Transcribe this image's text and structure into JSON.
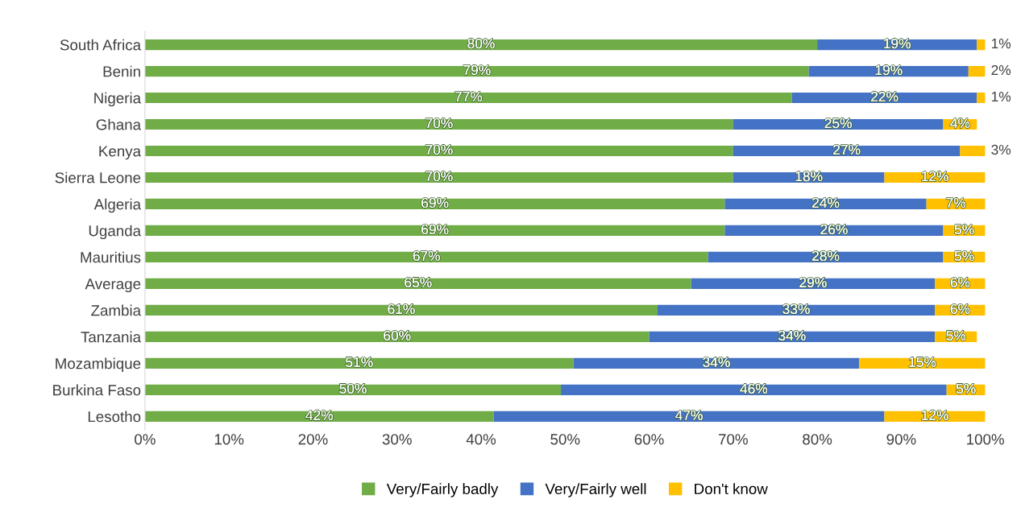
{
  "chart_data": {
    "type": "bar",
    "orientation": "horizontal",
    "stacked": true,
    "categories": [
      "South Africa",
      "Benin",
      "Nigeria",
      "Ghana",
      "Kenya",
      "Sierra Leone",
      "Algeria",
      "Uganda",
      "Mauritius",
      "Average",
      "Zambia",
      "Tanzania",
      "Mozambique",
      "Burkina Faso",
      "Lesotho"
    ],
    "series": [
      {
        "name": "Very/Fairly badly",
        "color": "#70ad47",
        "values": [
          80,
          79,
          77,
          70,
          70,
          70,
          69,
          69,
          67,
          65,
          61,
          60,
          51,
          49.5,
          41.5
        ],
        "value_labels": [
          "80%",
          "79%",
          "77%",
          "70%",
          "70%",
          "70%",
          "69%",
          "69%",
          "67%",
          "65%",
          "61%",
          "60%",
          "51%",
          "50%",
          "42%"
        ]
      },
      {
        "name": "Very/Fairly well",
        "color": "#4472c4",
        "values": [
          19,
          19,
          22,
          25,
          27,
          18,
          24,
          26,
          28,
          29,
          33,
          34,
          34,
          45.9,
          46.5
        ],
        "value_labels": [
          "19%",
          "19%",
          "22%",
          "25%",
          "27%",
          "18%",
          "24%",
          "26%",
          "28%",
          "29%",
          "33%",
          "34%",
          "34%",
          "46%",
          "47%"
        ]
      },
      {
        "name": "Don't know",
        "color": "#ffc000",
        "values": [
          1,
          2,
          1,
          4,
          3,
          12,
          7,
          5,
          5,
          6,
          6,
          5,
          15,
          4.6,
          12
        ],
        "value_labels": [
          "1%",
          "2%",
          "1%",
          "4%",
          "3%",
          "12%",
          "7%",
          "5%",
          "5%",
          "6%",
          "6%",
          "5%",
          "15%",
          "5%",
          "12%"
        ]
      }
    ],
    "xlim": [
      0,
      100
    ],
    "xticks": [
      {
        "value": 0,
        "label": "0%"
      },
      {
        "value": 10,
        "label": "10%"
      },
      {
        "value": 20,
        "label": "20%"
      },
      {
        "value": 30,
        "label": "30%"
      },
      {
        "value": 40,
        "label": "40%"
      },
      {
        "value": 50,
        "label": "50%"
      },
      {
        "value": 60,
        "label": "60%"
      },
      {
        "value": 70,
        "label": "70%"
      },
      {
        "value": 80,
        "label": "80%"
      },
      {
        "value": 90,
        "label": "90%"
      },
      {
        "value": 100,
        "label": "100%"
      }
    ],
    "grid": false,
    "legend": "bottom"
  }
}
